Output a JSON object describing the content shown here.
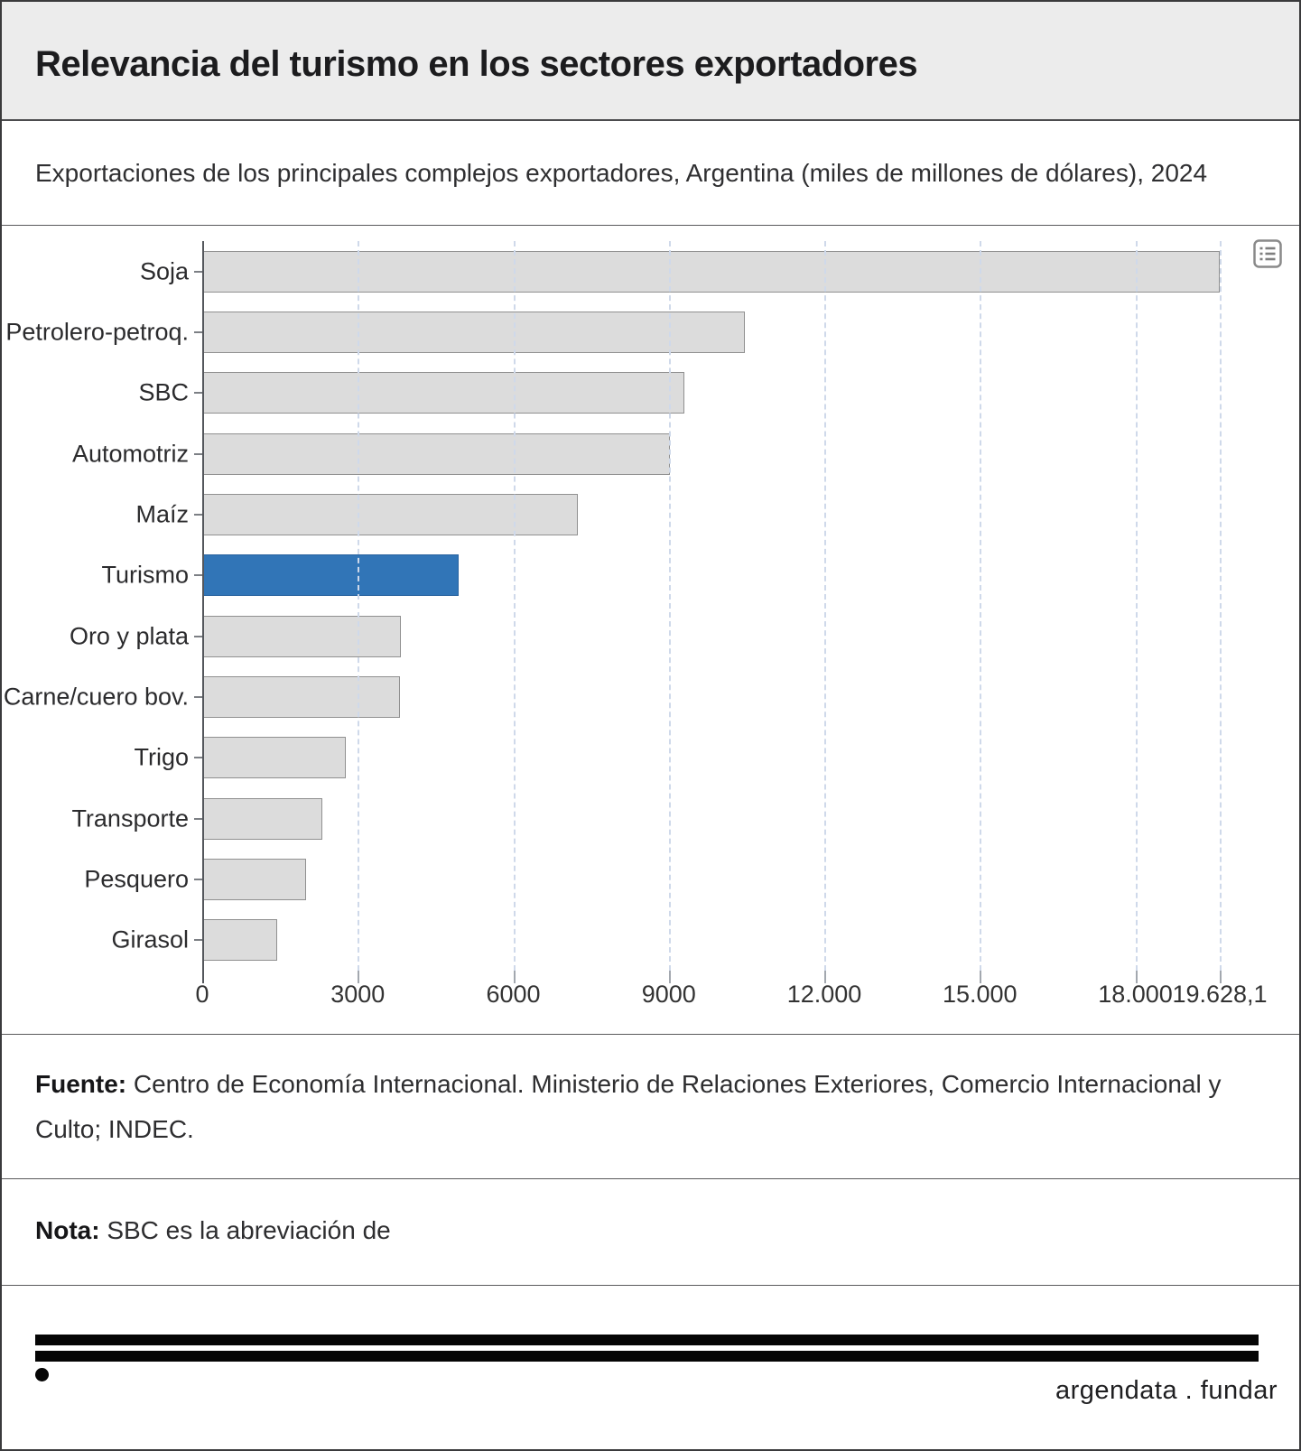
{
  "header": {
    "title": "Relevancia del turismo en los sectores exportadores"
  },
  "subtitle": "Exportaciones de los principales complejos exportadores, Argentina (miles de millones de dólares), 2024",
  "chart_data": {
    "type": "bar",
    "orientation": "horizontal",
    "title": "Relevancia del turismo en los sectores exportadores",
    "subtitle": "Exportaciones de los principales complejos exportadores, Argentina (miles de millones de dólares), 2024",
    "categories": [
      "Soja",
      "Petrolero-petroq.",
      "SBC",
      "Automotriz",
      "Maíz",
      "Turismo",
      "Oro y plata",
      "Carne/cuero bov.",
      "Trigo",
      "Transporte",
      "Pesquero",
      "Girasol"
    ],
    "values": [
      19628.1,
      10470,
      9300,
      9020,
      7240,
      4950,
      3830,
      3820,
      2765,
      2315,
      2010,
      1445
    ],
    "highlight_index": 5,
    "highlight_category": "Turismo",
    "xlabel": "",
    "ylabel": "",
    "xlim": [
      0,
      19906
    ],
    "xmax_value": 19628.1,
    "ticks": [
      {
        "value": 0,
        "label": "0"
      },
      {
        "value": 3000,
        "label": "3000"
      },
      {
        "value": 6000,
        "label": "6000"
      },
      {
        "value": 9000,
        "label": "9000"
      },
      {
        "value": 12000,
        "label": "12.000"
      },
      {
        "value": 15000,
        "label": "15.000"
      },
      {
        "value": 18000,
        "label": "18.000"
      },
      {
        "value": 19628.1,
        "label": "19.628,1"
      }
    ],
    "grid": "dashed-vertical",
    "legend_position": "none",
    "colors": {
      "bar_fill": "#dcdcdc",
      "bar_border": "#909090",
      "highlight_fill": "#3175b7",
      "highlight_border": "#2a639f",
      "gridline": "#cfd9ea",
      "axis": "#54575c"
    }
  },
  "fuente": {
    "label": "Fuente:",
    "text": " Centro de Economía Internacional. Ministerio de Relaciones Exteriores, Comercio Internacional y Culto; INDEC."
  },
  "nota": {
    "label": "Nota:",
    "text": " SBC es la abreviación de"
  },
  "footer": {
    "brand": "argendata . fundar"
  }
}
